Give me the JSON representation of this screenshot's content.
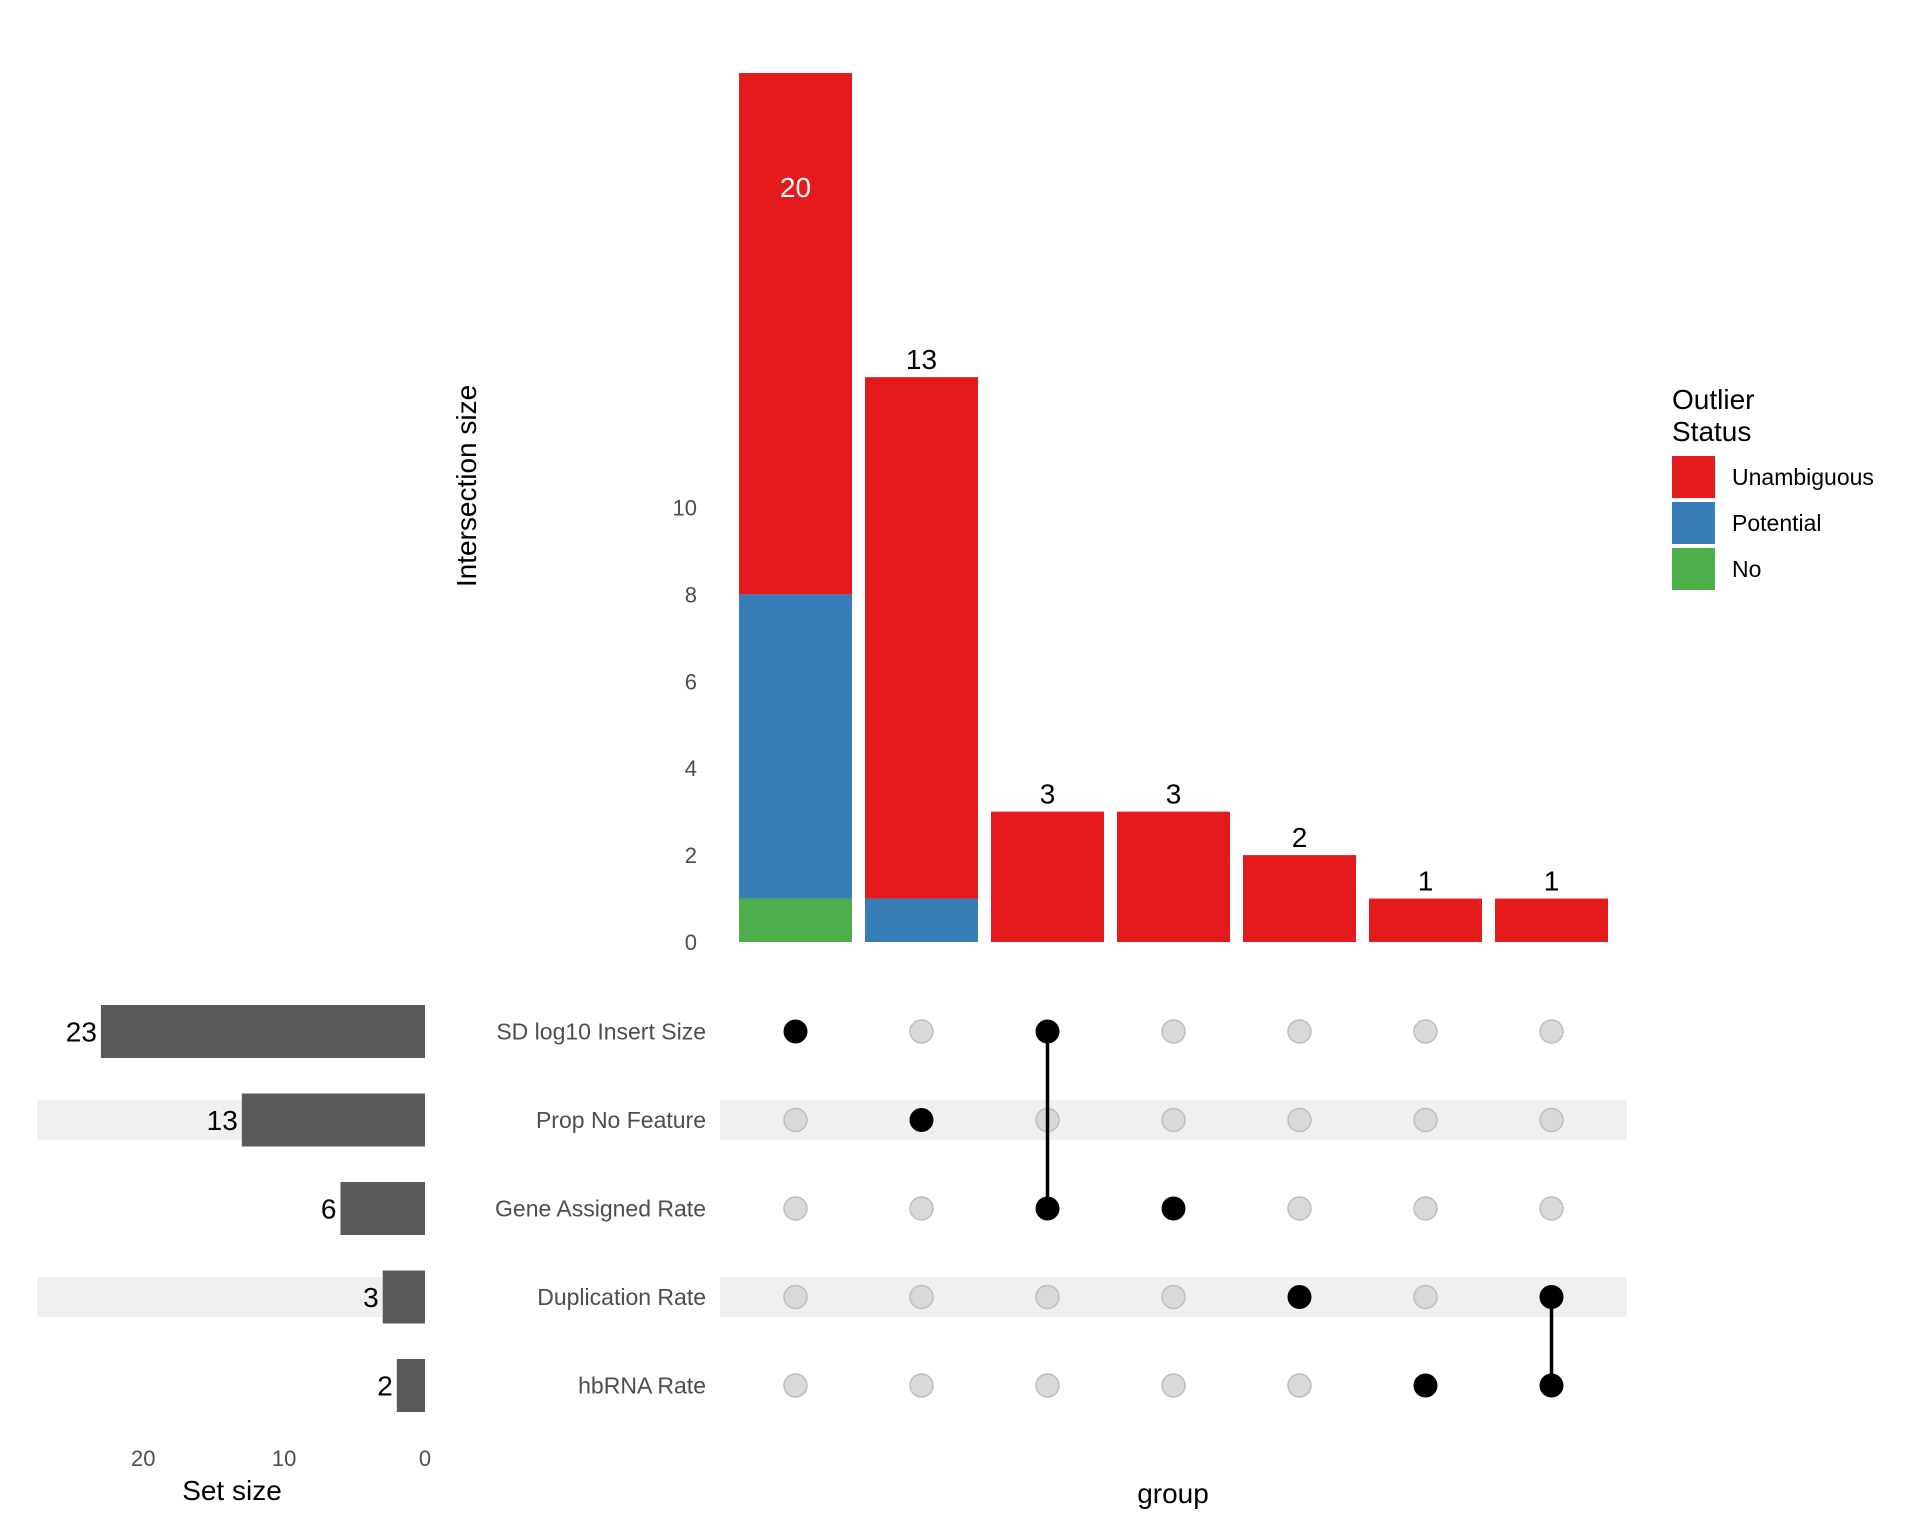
{
  "chart_data": {
    "type": "upset",
    "intersections": {
      "type": "bar",
      "stacked": true,
      "ylabel": "Intersection size",
      "xlabel": "group",
      "ylim": [
        0,
        20
      ],
      "yticks": [
        "0",
        "2",
        "4",
        "6",
        "8",
        "10"
      ],
      "ytick_values": [
        0,
        2,
        4,
        6,
        8,
        10
      ],
      "categories": [
        "SD log10 Insert Size",
        "Prop No Feature",
        "SD log10 Insert Size & Gene Assigned Rate",
        "Gene Assigned Rate",
        "Duplication Rate",
        "hbRNA Rate",
        "Duplication Rate & hbRNA Rate"
      ],
      "series": [
        {
          "name": "No",
          "color": "#4DAF4A",
          "values": [
            1,
            0,
            0,
            0,
            0,
            0,
            0
          ]
        },
        {
          "name": "Potential",
          "color": "#377EB8",
          "values": [
            7,
            1,
            0,
            0,
            0,
            0,
            0
          ]
        },
        {
          "name": "Unambiguous",
          "color": "#E41A1C",
          "values": [
            12,
            12,
            3,
            3,
            2,
            1,
            1
          ]
        }
      ],
      "totals": [
        20,
        13,
        3,
        3,
        2,
        1,
        1
      ],
      "total_labels": [
        "20",
        "13",
        "3",
        "3",
        "2",
        "1",
        "1"
      ],
      "label_inside": [
        true,
        false,
        false,
        false,
        false,
        false,
        false
      ]
    },
    "sets": {
      "type": "bar",
      "orientation": "horizontal-reversed",
      "xlabel": "Set size",
      "xlim": [
        0,
        23
      ],
      "xticks": [
        "20",
        "10",
        "0"
      ],
      "xtick_values": [
        20,
        10,
        0
      ],
      "names": [
        "SD log10 Insert Size",
        "Prop No Feature",
        "Gene Assigned Rate",
        "Duplication Rate",
        "hbRNA Rate"
      ],
      "values": [
        23,
        13,
        6,
        3,
        2
      ],
      "value_labels": [
        "23",
        "13",
        "6",
        "3",
        "2"
      ],
      "bar_color": "#595959"
    },
    "matrix": {
      "membership": [
        [
          0
        ],
        [
          1
        ],
        [
          0,
          2
        ],
        [
          2
        ],
        [
          3
        ],
        [
          4
        ],
        [
          3,
          4
        ]
      ],
      "active_color": "#000000",
      "inactive_color": "#d9d9d9",
      "stripe_color": "#f0f0f0"
    },
    "legend": {
      "title_lines": [
        "Outlier",
        "Status"
      ],
      "position": "right",
      "items": [
        {
          "label": "Unambiguous",
          "color": "#E41A1C"
        },
        {
          "label": "Potential",
          "color": "#377EB8"
        },
        {
          "label": "No",
          "color": "#4DAF4A"
        }
      ]
    }
  }
}
